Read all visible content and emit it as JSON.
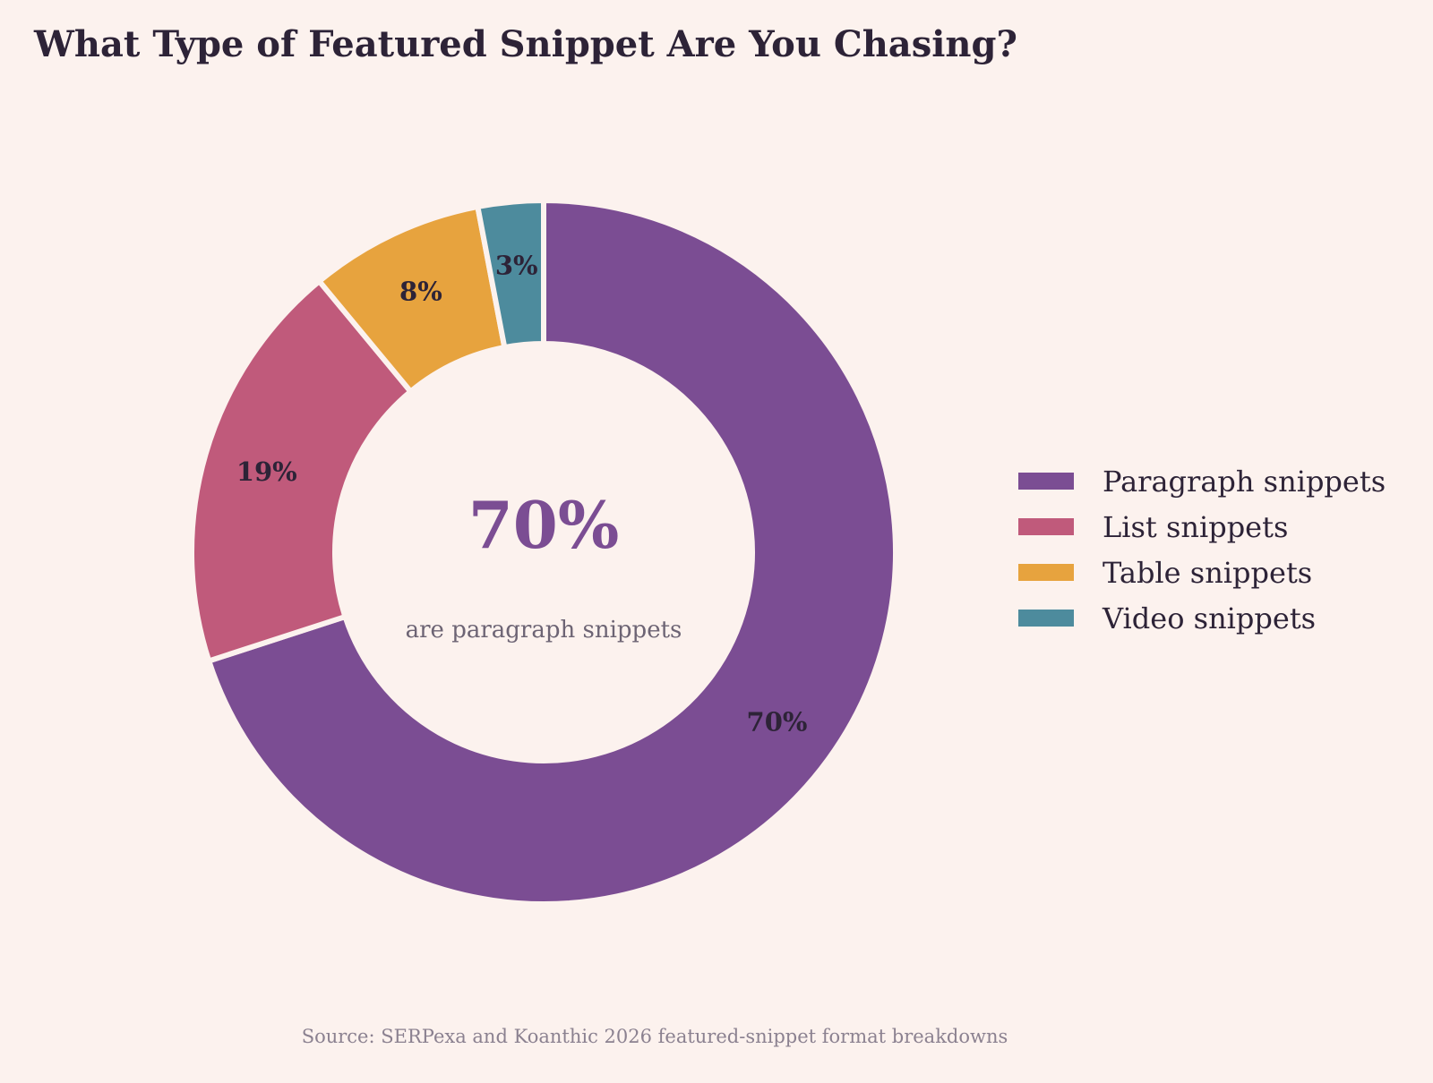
{
  "title": "What Type of Featured Snippet Are You Chasing?",
  "center": {
    "value": "70%",
    "caption": "are paragraph snippets"
  },
  "source": "Source: SERPexa and Koanthic 2026 featured-snippet format breakdowns",
  "chart_data": {
    "type": "pie",
    "donut": true,
    "title": "What Type of Featured Snippet Are You Chasing?",
    "categories": [
      "Paragraph snippets",
      "List snippets",
      "Table snippets",
      "Video snippets"
    ],
    "values": [
      70,
      19,
      8,
      3
    ],
    "data_labels": [
      "70%",
      "19%",
      "8%",
      "3%"
    ],
    "colors": [
      "#7b4d93",
      "#c05a7b",
      "#e7a33e",
      "#4d8b9d"
    ],
    "legend_position": "right",
    "start": "top, clockwise"
  }
}
